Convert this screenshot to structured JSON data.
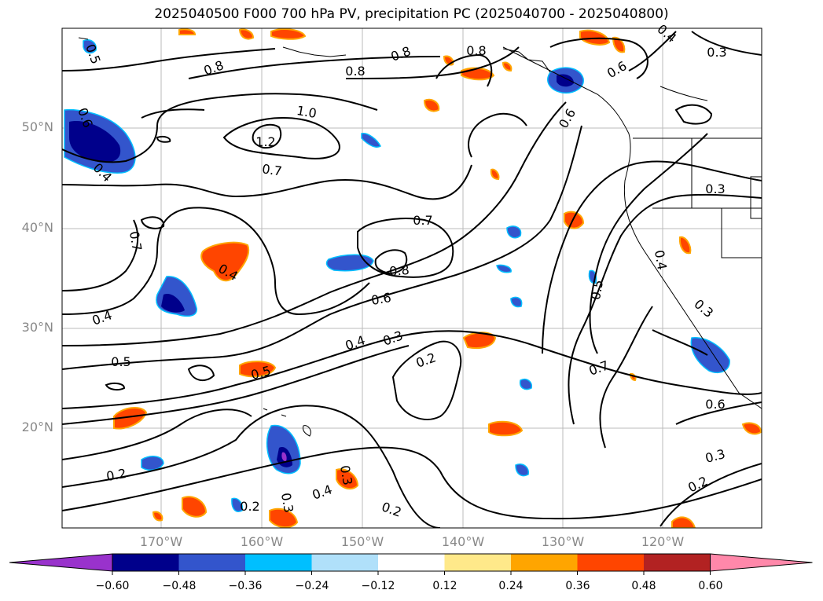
{
  "title": "2025040500 F000 700 hPa PV, precipitation PC (2025040700 - 2025040800)",
  "lat_labels": [
    "50°N",
    "40°N",
    "30°N",
    "20°N"
  ],
  "lon_labels": [
    "170°W",
    "160°W",
    "150°W",
    "140°W",
    "130°W",
    "120°W"
  ],
  "contour_labels": [
    "0.5",
    "0.8",
    "0.8",
    "0.8",
    "0.8",
    "0.4",
    "0.3",
    "0.6",
    "0.6",
    "1.0",
    "1.2",
    "0.7",
    "0.7",
    "0.7",
    "0.4",
    "0.4",
    "0.4",
    "0.3",
    "0.8",
    "0.6",
    "0.7",
    "0.5",
    "0.4",
    "0.3",
    "0.2",
    "0.5",
    "0.5",
    "0.6",
    "0.3",
    "0.6",
    "0.3",
    "0.2",
    "0.2",
    "0.2",
    "0.4",
    "0.3",
    "0.2",
    "0.3",
    "0.4"
  ],
  "colorbar": {
    "ticks": [
      "−0.60",
      "−0.48",
      "−0.36",
      "−0.24",
      "−0.12",
      "0.12",
      "0.24",
      "0.36",
      "0.48",
      "0.60"
    ],
    "colors": [
      "#9932cc",
      "#00008b",
      "#3355cc",
      "#00bfff",
      "#b0e0fa",
      "#ffffff",
      "#ffe98a",
      "#ffa500",
      "#ff4500",
      "#b22222",
      "#ff88aa"
    ]
  }
}
